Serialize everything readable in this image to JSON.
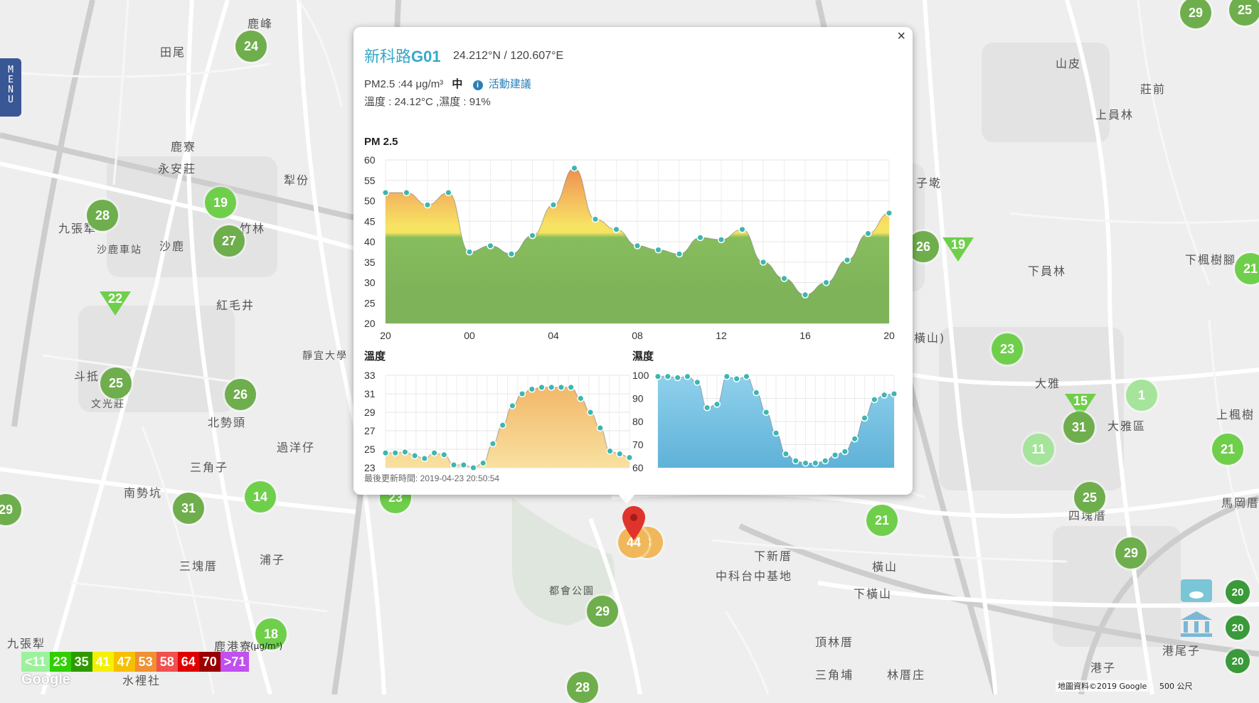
{
  "menu": {
    "label": "MENU"
  },
  "map_labels": [
    "鹿峰",
    "田尾",
    "山皮",
    "莊前",
    "上員林",
    "鹿寮",
    "永安莊",
    "犁份",
    "九張犁",
    "竹林",
    "沙鹿",
    "沙鹿車站",
    "紅毛井",
    "下員林",
    "下楓樹腳",
    "子墘",
    "斗抵",
    "文光莊",
    "北勢頭",
    "過洋仔",
    "三角子",
    "大雅",
    "大雅區",
    "南勢坑",
    "浦子",
    "三塊厝",
    "下新厝",
    "中科台中基地",
    "橫山",
    "下橫山",
    "上楓樹",
    "馬岡厝",
    "四塊厝",
    "頂林厝",
    "三角埔",
    "林厝庄",
    "港尾子",
    "港子",
    "都會公園",
    "鹿港寮",
    "水裡社",
    "九張犁",
    "靜宜大學",
    "橫山)"
  ],
  "sensors": [
    "24",
    "29",
    "25",
    "19",
    "28",
    "27",
    "22",
    "25",
    "26",
    "14",
    "31",
    "23",
    "18",
    "29",
    "28",
    "26",
    "19",
    "23",
    "1",
    "15",
    "31",
    "11",
    "21",
    "25",
    "29",
    "21",
    "21",
    "29",
    "20",
    "20",
    "20",
    "44",
    "3"
  ],
  "popup": {
    "station_prefix": "新科路",
    "station_id": "G01",
    "coordinates": "24.212°N / 120.607°E",
    "pm_reading": "PM2.5 :44 μg/m³",
    "pm_level": "中",
    "info_icon": "i",
    "advice_link": "活動建議",
    "temp_humidity": "溫度 : 24.12°C ,濕度 : 91%",
    "updated": "最後更新時間: 2019-04-23 20:50:54",
    "close": "×"
  },
  "chart_data": [
    {
      "type": "area",
      "title": "PM 2.5",
      "x": [
        "20",
        "21",
        "22",
        "23",
        "00",
        "01",
        "02",
        "03",
        "04",
        "05",
        "06",
        "07",
        "08",
        "09",
        "10",
        "11",
        "12",
        "13",
        "14",
        "15",
        "16",
        "17",
        "18",
        "19",
        "20"
      ],
      "x_ticks": [
        "20",
        "00",
        "04",
        "08",
        "12",
        "16",
        "20"
      ],
      "values": [
        52,
        52,
        49,
        52,
        37.5,
        39,
        37,
        41.5,
        49,
        58,
        45.5,
        43,
        39,
        38,
        37,
        41,
        40.5,
        43,
        35,
        31,
        27,
        30,
        35.5,
        42,
        47
      ],
      "ylim": [
        20,
        60
      ],
      "y_ticks": [
        "20",
        "25",
        "30",
        "35",
        "40",
        "45",
        "50",
        "55",
        "60"
      ],
      "grid": true
    },
    {
      "type": "area",
      "title": "溫度",
      "values": [
        24.6,
        24.6,
        24.7,
        24.3,
        24,
        24.6,
        24.4,
        23.3,
        23.3,
        23,
        23.5,
        25.6,
        27.6,
        29.7,
        31,
        31.5,
        31.7,
        31.7,
        31.7,
        31.7,
        30.5,
        29,
        27.3,
        24.8,
        24.5,
        24.1
      ],
      "ylim": [
        23,
        33
      ],
      "y_ticks": [
        "23",
        "25",
        "27",
        "29",
        "31",
        "33"
      ],
      "grid": true
    },
    {
      "type": "area",
      "title": "濕度",
      "values": [
        99.5,
        99.5,
        99,
        99.5,
        97,
        86,
        87.5,
        99.5,
        98.5,
        99.5,
        92.5,
        84,
        75,
        66,
        63,
        62,
        62,
        63,
        65.5,
        67,
        72.5,
        81.5,
        89.5,
        91.5,
        92
      ],
      "ylim": [
        60,
        100
      ],
      "y_ticks": [
        "60",
        "70",
        "80",
        "90",
        "100"
      ],
      "grid": true
    }
  ],
  "legend": {
    "items": [
      {
        "label": "<11",
        "color": "#9cf29c"
      },
      {
        "label": "23",
        "color": "#31cf00"
      },
      {
        "label": "35",
        "color": "#2e9a00"
      },
      {
        "label": "41",
        "color": "#f5f000"
      },
      {
        "label": "47",
        "color": "#f5c000"
      },
      {
        "label": "53",
        "color": "#f09030"
      },
      {
        "label": "58",
        "color": "#f05050"
      },
      {
        "label": "64",
        "color": "#e00000"
      },
      {
        "label": "70",
        "color": "#9a0000"
      },
      {
        "label": ">71",
        "color": "#c050f0"
      }
    ],
    "unit": "(μg/m³)"
  },
  "google_logo": "Google",
  "map_credit": "地圖資料©2019 Google",
  "map_scale": "500 公尺"
}
